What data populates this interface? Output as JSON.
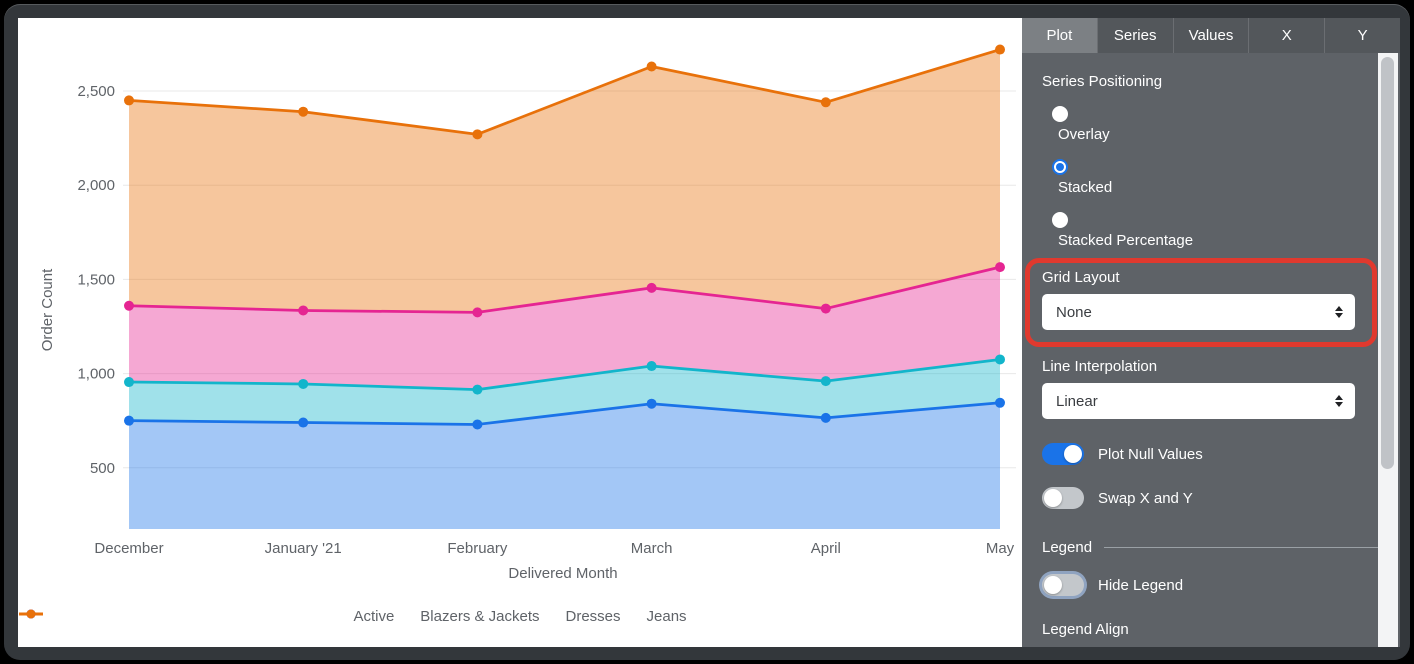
{
  "chart_data": {
    "type": "area",
    "stacking": "stacked",
    "x_axis_label": "Delivered Month",
    "y_axis_label": "Order Count",
    "categories": [
      "December",
      "January '21",
      "February",
      "March",
      "April",
      "May"
    ],
    "series": [
      {
        "name": "Active",
        "color": "#1A73E8",
        "values": [
          750,
          740,
          730,
          840,
          765,
          845
        ]
      },
      {
        "name": "Blazers & Jackets",
        "color": "#12B5CB",
        "values": [
          205,
          205,
          185,
          200,
          195,
          230
        ]
      },
      {
        "name": "Dresses",
        "color": "#E52592",
        "values": [
          405,
          390,
          410,
          415,
          385,
          490
        ]
      },
      {
        "name": "Jeans",
        "color": "#E8710A",
        "values": [
          1090,
          1055,
          945,
          1175,
          1095,
          1155
        ]
      }
    ],
    "stacked_totals": {
      "Active": [
        750,
        740,
        730,
        840,
        765,
        845
      ],
      "Blazers & Jackets": [
        955,
        945,
        915,
        1040,
        960,
        1075
      ],
      "Dresses": [
        1360,
        1335,
        1325,
        1455,
        1345,
        1565
      ],
      "Jeans": [
        2450,
        2390,
        2270,
        2630,
        2440,
        2720
      ]
    },
    "y_ticks": [
      {
        "value": 500,
        "label": "500"
      },
      {
        "value": 1000,
        "label": "1,000"
      },
      {
        "value": 1500,
        "label": "1,500"
      },
      {
        "value": 2000,
        "label": "2,000"
      },
      {
        "value": 2500,
        "label": "2,500"
      }
    ],
    "y_axis_range": [
      175,
      2890
    ],
    "grid": "horizontal",
    "legend_position": "bottom"
  },
  "panel": {
    "tabs": [
      {
        "label": "Plot",
        "active": true
      },
      {
        "label": "Series",
        "active": false
      },
      {
        "label": "Values",
        "active": false
      },
      {
        "label": "X",
        "active": false
      },
      {
        "label": "Y",
        "active": false
      }
    ],
    "series_positioning": {
      "label": "Series Positioning",
      "options": [
        {
          "label": "Overlay",
          "selected": false
        },
        {
          "label": "Stacked",
          "selected": true
        },
        {
          "label": "Stacked Percentage",
          "selected": false
        }
      ]
    },
    "grid_layout": {
      "label": "Grid Layout",
      "value": "None"
    },
    "line_interpolation": {
      "label": "Line Interpolation",
      "value": "Linear"
    },
    "plot_null_values": {
      "label": "Plot Null Values",
      "on": true
    },
    "swap_x_and_y": {
      "label": "Swap X and Y",
      "on": false
    },
    "legend_section": {
      "header": "Legend",
      "align_label": "Legend Align"
    },
    "hide_legend": {
      "label": "Hide Legend",
      "on": false,
      "focus_ring": true
    }
  },
  "annotation": {
    "target": "Grid Layout",
    "color": "#E0392E"
  },
  "colors": {
    "accent_blue": "#1A73E8",
    "panel_bg": "#5E6267",
    "axis_text": "#5F6368",
    "grid_line": "#E8E8E8"
  }
}
